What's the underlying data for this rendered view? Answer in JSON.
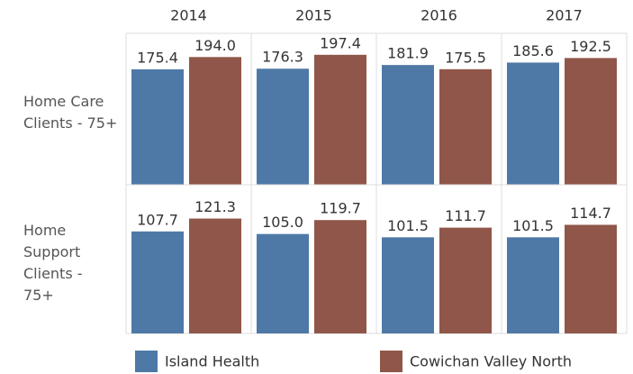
{
  "chart_data": {
    "type": "bar",
    "columns": [
      "2014",
      "2015",
      "2016",
      "2017"
    ],
    "rows": [
      {
        "label": "Home Care Clients - 75+",
        "ylim": [
          0,
          230
        ]
      },
      {
        "label": "Home Support Clients - 75+",
        "ylim": [
          0,
          157
        ]
      }
    ],
    "series": [
      {
        "name": "Island Health",
        "color": "#4e79a7",
        "values": [
          [
            175.4,
            176.3,
            181.9,
            185.6
          ],
          [
            107.7,
            105.0,
            101.5,
            101.5
          ]
        ],
        "value_labels": [
          [
            "175.4",
            "176.3",
            "181.9",
            "185.6"
          ],
          [
            "107.7",
            "105.0",
            "101.5",
            "101.5"
          ]
        ]
      },
      {
        "name": "Cowichan Valley North",
        "color": "#8f5649",
        "values": [
          [
            194.0,
            197.4,
            175.5,
            192.5
          ],
          [
            121.3,
            119.7,
            111.7,
            114.7
          ]
        ],
        "value_labels": [
          [
            "194.0",
            "197.4",
            "175.5",
            "192.5"
          ],
          [
            "121.3",
            "119.7",
            "111.7",
            "114.7"
          ]
        ]
      }
    ]
  }
}
